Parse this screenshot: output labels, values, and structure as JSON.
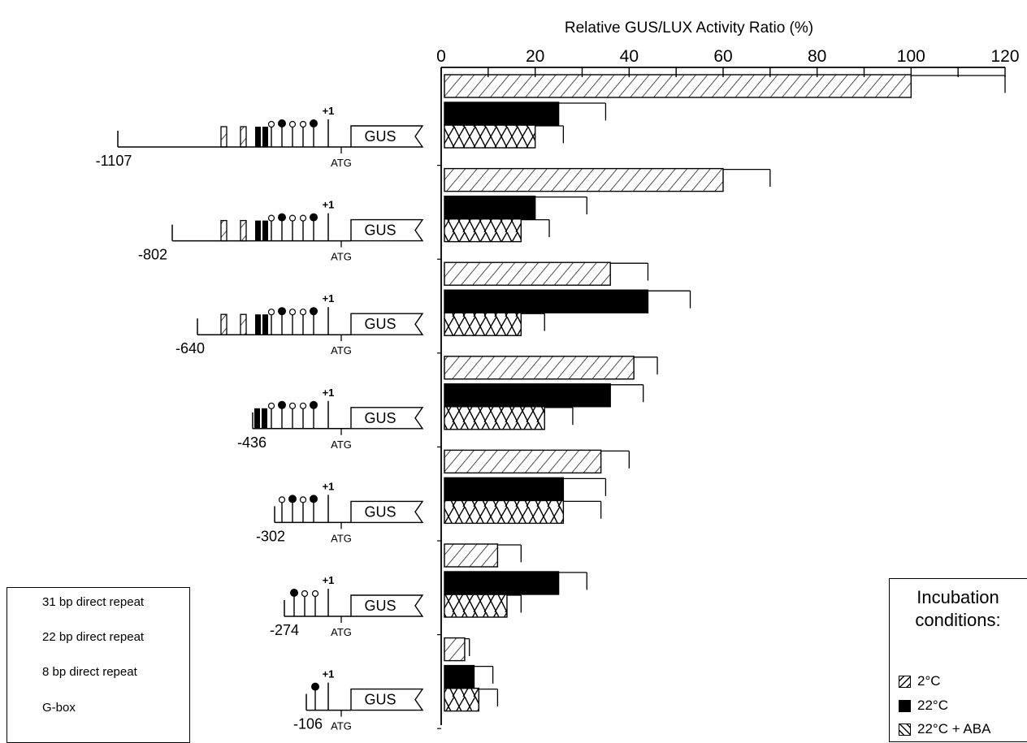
{
  "chart_data": {
    "type": "bar",
    "orientation": "horizontal",
    "title": "Relative GUS/LUX Activity Ratio (%)",
    "xlim": [
      0,
      120
    ],
    "xticks": [
      "0",
      "20",
      "40",
      "60",
      "80",
      "100",
      "120"
    ],
    "xtick_values": [
      0,
      20,
      40,
      60,
      80,
      100,
      120
    ],
    "categories": [
      "-1107",
      "-802",
      "-640",
      "-436",
      "-302",
      "-274",
      "-106"
    ],
    "series": [
      {
        "name": "2°C",
        "style": "hatch",
        "values": [
          100,
          60,
          36,
          41,
          34,
          12,
          5
        ],
        "errors": [
          20,
          10,
          8,
          5,
          6,
          5,
          1
        ]
      },
      {
        "name": "22°C",
        "style": "black",
        "values": [
          25,
          20,
          44,
          36,
          26,
          25,
          7
        ],
        "errors": [
          10,
          11,
          9,
          7,
          9,
          6,
          4
        ]
      },
      {
        "name": "22°C + ABA",
        "style": "cross",
        "values": [
          20,
          17,
          17,
          22,
          26,
          14,
          8
        ],
        "errors": [
          6,
          6,
          5,
          6,
          8,
          3,
          4
        ]
      }
    ]
  },
  "constructs": [
    {
      "label": "-1107",
      "r31": 2,
      "r22": 2,
      "elements": [
        "o",
        "g",
        "o",
        "o",
        "g"
      ]
    },
    {
      "label": "-802",
      "r31": 2,
      "r22": 2,
      "elements": [
        "o",
        "g",
        "o",
        "o",
        "g"
      ]
    },
    {
      "label": "-640",
      "r31": 2,
      "r22": 2,
      "elements": [
        "o",
        "g",
        "o",
        "o",
        "g"
      ]
    },
    {
      "label": "-436",
      "r31": 0,
      "r22": 2,
      "elements": [
        "o",
        "g",
        "o",
        "o",
        "g"
      ]
    },
    {
      "label": "-302",
      "r31": 0,
      "r22": 0,
      "elements": [
        "o",
        "g",
        "o",
        "g"
      ]
    },
    {
      "label": "-274",
      "r31": 0,
      "r22": 0,
      "elements": [
        "g",
        "o",
        "o"
      ]
    },
    {
      "label": "-106",
      "r31": 0,
      "r22": 0,
      "elements": [
        "g"
      ]
    }
  ],
  "construct_text": {
    "gene": "GUS",
    "tss": "+1",
    "start": "ATG"
  },
  "element_legend": {
    "repeat31": "31 bp direct repeat",
    "repeat22": "22 bp direct repeat",
    "repeat8": "8 bp direct repeat",
    "gbox": "G-box"
  },
  "conditions_legend": {
    "title_line1": "Incubation",
    "title_line2": "conditions:",
    "items": [
      "2°C",
      "22°C",
      "22°C + ABA"
    ]
  }
}
